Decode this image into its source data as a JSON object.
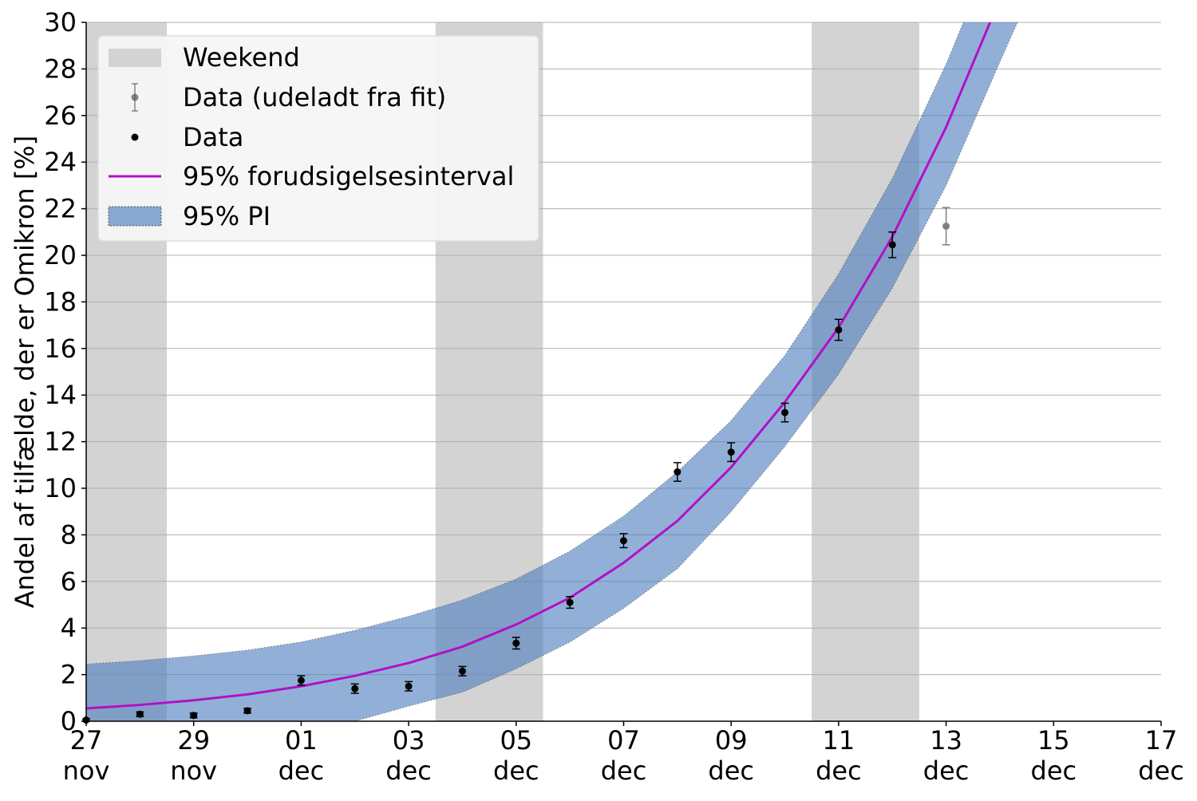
{
  "chart_data": {
    "type": "line",
    "ylabel": "Andel af tilfælde, der er Omikron [%]",
    "xlabel": "",
    "title": "",
    "ylim": [
      0,
      30
    ],
    "xlim": [
      "2021-11-27",
      "2021-12-17"
    ],
    "x_tick_labels": [
      {
        "date": "2021-11-27",
        "day": "27",
        "month": "nov"
      },
      {
        "date": "2021-11-29",
        "day": "29",
        "month": "nov"
      },
      {
        "date": "2021-12-01",
        "day": "01",
        "month": "dec"
      },
      {
        "date": "2021-12-03",
        "day": "03",
        "month": "dec"
      },
      {
        "date": "2021-12-05",
        "day": "05",
        "month": "dec"
      },
      {
        "date": "2021-12-07",
        "day": "07",
        "month": "dec"
      },
      {
        "date": "2021-12-09",
        "day": "09",
        "month": "dec"
      },
      {
        "date": "2021-12-11",
        "day": "11",
        "month": "dec"
      },
      {
        "date": "2021-12-13",
        "day": "13",
        "month": "dec"
      },
      {
        "date": "2021-12-15",
        "day": "15",
        "month": "dec"
      },
      {
        "date": "2021-12-17",
        "day": "17",
        "month": "dec"
      }
    ],
    "y_ticks": [
      "0",
      "2",
      "4",
      "6",
      "8",
      "10",
      "12",
      "14",
      "16",
      "18",
      "20",
      "22",
      "24",
      "26",
      "28",
      "30"
    ],
    "grid": "horizontal",
    "legend_position": "top-left",
    "legend": [
      {
        "key": "weekend",
        "label": "Weekend"
      },
      {
        "key": "excluded",
        "label": "Data (udeladt fra fit)"
      },
      {
        "key": "data",
        "label": "Data"
      },
      {
        "key": "line",
        "label": "95% forudsigelsesinterval"
      },
      {
        "key": "band",
        "label": "95% PI"
      }
    ],
    "weekends": [
      {
        "start": "2021-11-26T12:00",
        "end": "2021-11-28T12:00"
      },
      {
        "start": "2021-12-03T12:00",
        "end": "2021-12-05T12:00"
      },
      {
        "start": "2021-12-10T12:00",
        "end": "2021-12-12T12:00"
      }
    ],
    "colors": {
      "weekend": "#d3d3d3",
      "band": "#4f7fbf",
      "line": "#b30fc8",
      "data": "#000000",
      "excluded": "#555555",
      "grid": "#b0b0b0"
    },
    "fit_line": {
      "x": [
        "2021-11-27",
        "2021-11-28",
        "2021-11-29",
        "2021-11-30",
        "2021-12-01",
        "2021-12-02",
        "2021-12-03",
        "2021-12-04",
        "2021-12-05",
        "2021-12-06",
        "2021-12-07",
        "2021-12-08",
        "2021-12-09",
        "2021-12-10",
        "2021-12-11",
        "2021-12-12",
        "2021-12-13",
        "2021-12-14"
      ],
      "y": [
        0.55,
        0.7,
        0.9,
        1.15,
        1.5,
        1.95,
        2.5,
        3.2,
        4.15,
        5.3,
        6.8,
        8.6,
        10.9,
        13.7,
        16.9,
        20.8,
        25.5,
        31.0
      ]
    },
    "prediction_band": {
      "x": [
        "2021-11-27",
        "2021-11-28",
        "2021-11-29",
        "2021-11-30",
        "2021-12-01",
        "2021-12-02",
        "2021-12-03",
        "2021-12-04",
        "2021-12-05",
        "2021-12-06",
        "2021-12-07",
        "2021-12-08",
        "2021-12-09",
        "2021-12-10",
        "2021-12-11",
        "2021-12-12",
        "2021-12-13",
        "2021-12-14",
        "2021-12-15"
      ],
      "upper": [
        2.45,
        2.6,
        2.8,
        3.05,
        3.4,
        3.9,
        4.5,
        5.2,
        6.1,
        7.3,
        8.8,
        10.7,
        12.9,
        15.7,
        19.2,
        23.3,
        28.2,
        33.8,
        40.0
      ],
      "lower": [
        0.0,
        0.0,
        0.0,
        0.0,
        0.0,
        0.0,
        0.65,
        1.25,
        2.25,
        3.4,
        4.85,
        6.55,
        9.0,
        11.8,
        14.9,
        18.6,
        23.0,
        28.3,
        33.5
      ]
    },
    "series": [
      {
        "name": "Data",
        "x": [
          "2021-11-27",
          "2021-11-28",
          "2021-11-29",
          "2021-11-30",
          "2021-12-01",
          "2021-12-02",
          "2021-12-03",
          "2021-12-04",
          "2021-12-05",
          "2021-12-06",
          "2021-12-07",
          "2021-12-08",
          "2021-12-09",
          "2021-12-10",
          "2021-12-11",
          "2021-12-12"
        ],
        "y": [
          0.05,
          0.3,
          0.25,
          0.45,
          1.75,
          1.4,
          1.5,
          2.15,
          3.35,
          5.1,
          7.75,
          10.7,
          11.55,
          13.25,
          16.8,
          20.45
        ],
        "err": [
          0.05,
          0.1,
          0.1,
          0.1,
          0.2,
          0.2,
          0.2,
          0.2,
          0.25,
          0.25,
          0.3,
          0.4,
          0.4,
          0.4,
          0.45,
          0.55
        ]
      },
      {
        "name": "Data (udeladt fra fit)",
        "x": [
          "2021-12-13"
        ],
        "y": [
          21.25
        ],
        "err": [
          0.8
        ]
      }
    ]
  }
}
